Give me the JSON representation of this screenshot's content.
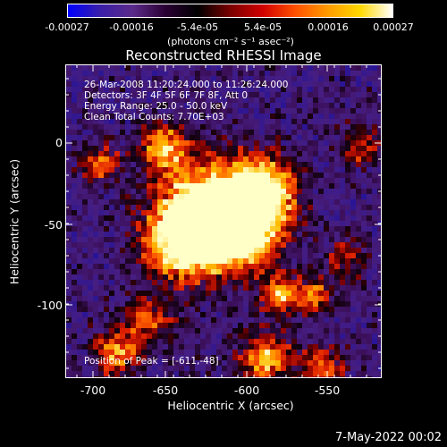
{
  "colorbar": {
    "labels": [
      "-0.00027",
      "-0.00016",
      "-5.4e-05",
      "5.4e-05",
      "0.00016",
      "0.00027"
    ],
    "units": "(photons cm⁻² s⁻¹ asec⁻²)"
  },
  "title": "Reconstructed RHESSI Image",
  "info": {
    "time": "26-Mar-2008 11:20:24.000 to 11:26:24.000",
    "detectors": "Detectors: 3F 4F 5F 6F 7F 8F, Att 0",
    "energy": "Energy Range: 25.0 - 50.0 keV",
    "clean": "Clean     Total Counts: 7.70E+03",
    "peak": "Position of Peak = [-611,-48]"
  },
  "xaxis": {
    "label": "Heliocentric X (arcsec)",
    "ticks": [
      "-700",
      "-650",
      "-600",
      "-550"
    ],
    "range": [
      -714,
      -523
    ]
  },
  "yaxis": {
    "label": "Heliocentric Y (arcsec)",
    "ticks": [
      "0",
      "-50",
      "-100"
    ],
    "range": [
      -145,
      45
    ]
  },
  "timestamp": "7-May-2022 00:02",
  "colormap": [
    "#0000ff",
    "#2a1a8a",
    "#3c1470",
    "#1a0010",
    "#000000",
    "#8a0000",
    "#d01000",
    "#ff5a00",
    "#ffaa00",
    "#ffe000",
    "#ffffff"
  ]
}
